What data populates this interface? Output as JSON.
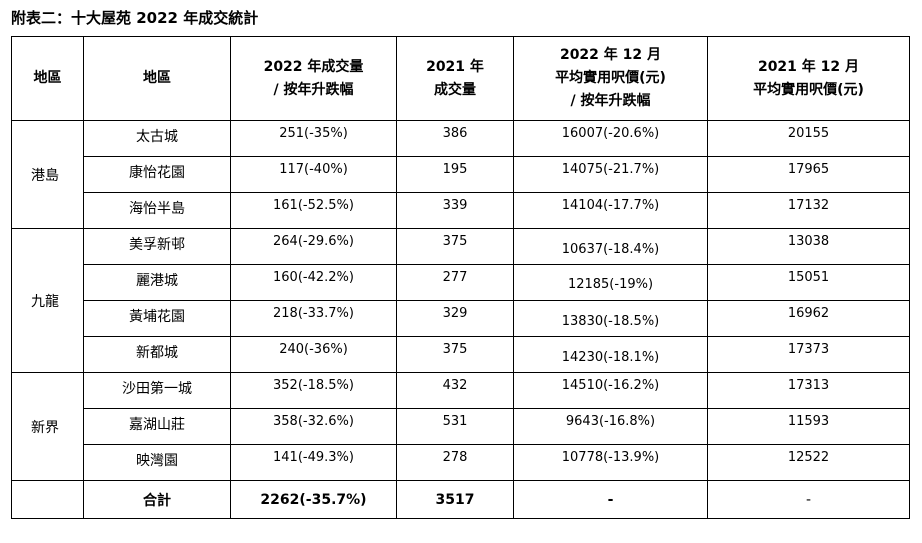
{
  "title": "附表二：十大屋苑 2022 年成交統計",
  "headers": {
    "region": "地區",
    "estate": "地區",
    "vol2022_line1": "2022 年成交量",
    "vol2022_line2": "/ 按年升跌幅",
    "vol2021_line1": "2021 年",
    "vol2021_line2": "成交量",
    "price2022_line1": "2022 年 12 月",
    "price2022_line2": "平均實用呎價(元)",
    "price2022_line3": "/ 按年升跌幅",
    "price2021_line1": "2021 年 12 月",
    "price2021_line2": "平均實用呎價(元)"
  },
  "regions": {
    "hk_island": "港島",
    "kowloon": "九龍",
    "nt": "新界"
  },
  "rows": [
    {
      "estate": "太古城",
      "vol2022": "251(-35%)",
      "vol2021": "386",
      "price2022": "16007(-20.6%)",
      "price2021": "20155"
    },
    {
      "estate": "康怡花園",
      "vol2022": "117(-40%)",
      "vol2021": "195",
      "price2022": "14075(-21.7%)",
      "price2021": "17965"
    },
    {
      "estate": "海怡半島",
      "vol2022": "161(-52.5%)",
      "vol2021": "339",
      "price2022": "14104(-17.7%)",
      "price2021": "17132"
    },
    {
      "estate": "美孚新邨",
      "vol2022": "264(-29.6%)",
      "vol2021": "375",
      "price2022": "10637(-18.4%)",
      "price2021": "13038"
    },
    {
      "estate": "麗港城",
      "vol2022": "160(-42.2%)",
      "vol2021": "277",
      "price2022": "12185(-19%)",
      "price2021": "15051"
    },
    {
      "estate": "黃埔花園",
      "vol2022": "218(-33.7%)",
      "vol2021": "329",
      "price2022": "13830(-18.5%)",
      "price2021": "16962"
    },
    {
      "estate": "新都城",
      "vol2022": "240(-36%)",
      "vol2021": "375",
      "price2022": "14230(-18.1%)",
      "price2021": "17373"
    },
    {
      "estate": "沙田第一城",
      "vol2022": "352(-18.5%)",
      "vol2021": "432",
      "price2022": "14510(-16.2%)",
      "price2021": "17313"
    },
    {
      "estate": "嘉湖山莊",
      "vol2022": "358(-32.6%)",
      "vol2021": "531",
      "price2022": "9643(-16.8%)",
      "price2021": "11593"
    },
    {
      "estate": "映灣園",
      "vol2022": "141(-49.3%)",
      "vol2021": "278",
      "price2022": "10778(-13.9%)",
      "price2021": "12522"
    }
  ],
  "total": {
    "label": "合計",
    "vol2022": "2262(-35.7%)",
    "vol2021": "3517",
    "price2022": "-",
    "price2021": "-"
  }
}
